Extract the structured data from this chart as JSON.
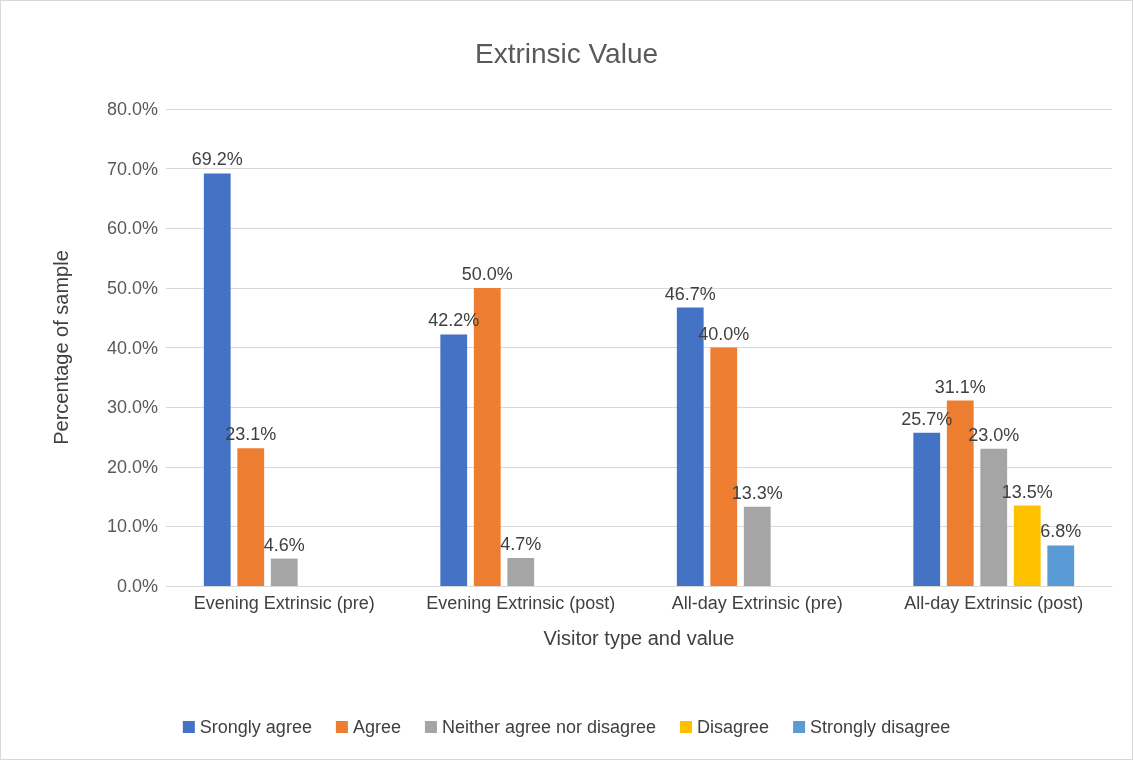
{
  "chart_data": {
    "type": "bar",
    "title": "Extrinsic Value",
    "xlabel": "Visitor type and value",
    "ylabel": "Percentage of sample",
    "categories": [
      "Evening Extrinsic (pre)",
      "Evening Extrinsic (post)",
      "All-day Extrinsic (pre)",
      "All-day Extrinsic (post)"
    ],
    "series": [
      {
        "name": "Srongly agree",
        "color": "#4472c4",
        "values": [
          69.2,
          42.2,
          46.7,
          25.7
        ],
        "value_labels": [
          "69.2%",
          "42.2%",
          "46.7%",
          "25.7%"
        ]
      },
      {
        "name": "Agree",
        "color": "#ed7d31",
        "values": [
          23.1,
          50.0,
          40.0,
          31.1
        ],
        "value_labels": [
          "23.1%",
          "50.0%",
          "40.0%",
          "31.1%"
        ]
      },
      {
        "name": "Neither agree nor disagree",
        "color": "#a5a5a5",
        "values": [
          4.6,
          4.7,
          13.3,
          23.0
        ],
        "value_labels": [
          "4.6%",
          "4.7%",
          "13.3%",
          "23.0%"
        ]
      },
      {
        "name": "Disagree",
        "color": "#ffc000",
        "values": [
          null,
          null,
          null,
          13.5
        ],
        "value_labels": [
          null,
          null,
          null,
          "13.5%"
        ]
      },
      {
        "name": "Strongly disagree",
        "color": "#5b9bd5",
        "values": [
          null,
          null,
          null,
          6.8
        ],
        "value_labels": [
          null,
          null,
          null,
          "6.8%"
        ]
      }
    ],
    "ylim": [
      0,
      80
    ],
    "yticks": [
      {
        "value": 0,
        "label": "0.0%"
      },
      {
        "value": 10,
        "label": "10.0%"
      },
      {
        "value": 20,
        "label": "20.0%"
      },
      {
        "value": 30,
        "label": "30.0%"
      },
      {
        "value": 40,
        "label": "40.0%"
      },
      {
        "value": 50,
        "label": "50.0%"
      },
      {
        "value": 60,
        "label": "60.0%"
      },
      {
        "value": 70,
        "label": "70.0%"
      },
      {
        "value": 80,
        "label": "80.0%"
      }
    ],
    "grid": "y",
    "legend": "bottom"
  }
}
